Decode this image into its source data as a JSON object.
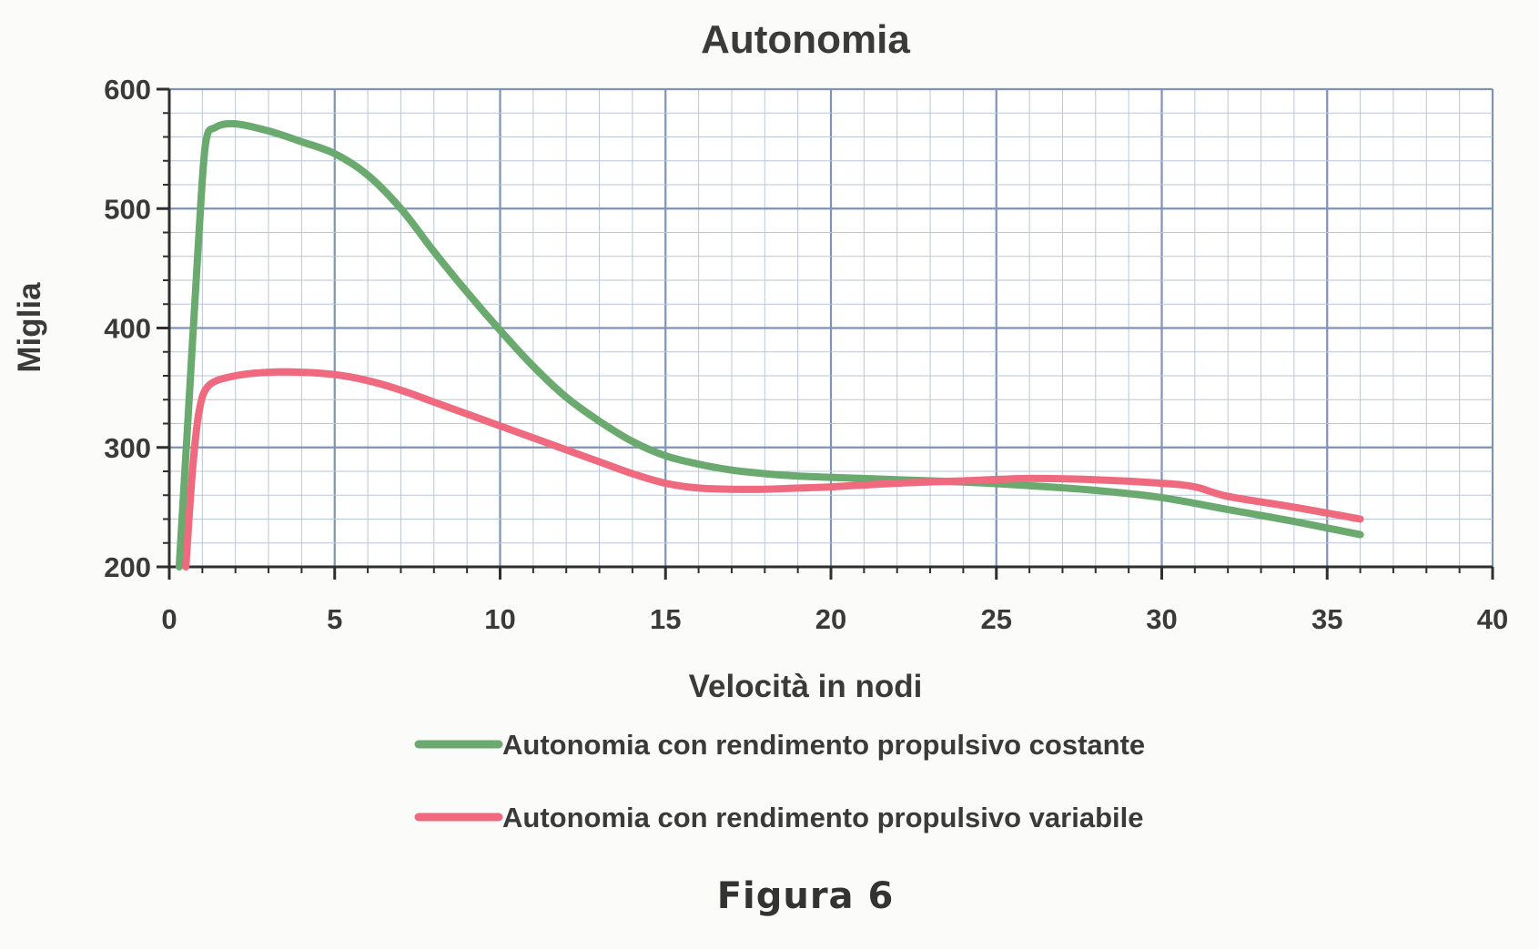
{
  "chart_data": {
    "type": "line",
    "title": "Autonomia",
    "xlabel": "Velocità in nodi",
    "ylabel": "Miglia",
    "xlim": [
      0,
      40
    ],
    "ylim": [
      200,
      600
    ],
    "x_ticks": [
      "0",
      "5",
      "10",
      "15",
      "20",
      "25",
      "30",
      "35",
      "40"
    ],
    "y_ticks": [
      "200",
      "300",
      "400",
      "500",
      "600"
    ],
    "grid": true,
    "legend_position": "bottom",
    "series": [
      {
        "name": "Autonomia con rendimento propulsivo costante",
        "color": "#6aaa6e",
        "points": [
          [
            0.3,
            200
          ],
          [
            0.6,
            340
          ],
          [
            0.9,
            480
          ],
          [
            1.1,
            555
          ],
          [
            1.4,
            568
          ],
          [
            2,
            571
          ],
          [
            3,
            565
          ],
          [
            4,
            556
          ],
          [
            5,
            546
          ],
          [
            6,
            528
          ],
          [
            7,
            500
          ],
          [
            8,
            464
          ],
          [
            9,
            430
          ],
          [
            10,
            398
          ],
          [
            11,
            368
          ],
          [
            12,
            342
          ],
          [
            13,
            322
          ],
          [
            14,
            305
          ],
          [
            15,
            293
          ],
          [
            16,
            286
          ],
          [
            17,
            281
          ],
          [
            18,
            278
          ],
          [
            19,
            276
          ],
          [
            20,
            275
          ],
          [
            22,
            273
          ],
          [
            24,
            271
          ],
          [
            26,
            268
          ],
          [
            28,
            264
          ],
          [
            30,
            258
          ],
          [
            32,
            248
          ],
          [
            34,
            238
          ],
          [
            36,
            227
          ]
        ]
      },
      {
        "name": "Autonomia con rendimento propulsivo variabile",
        "color": "#ef6a7e",
        "points": [
          [
            0.5,
            200
          ],
          [
            0.7,
            280
          ],
          [
            0.9,
            330
          ],
          [
            1.2,
            352
          ],
          [
            2,
            360
          ],
          [
            3,
            363
          ],
          [
            4,
            363
          ],
          [
            5,
            361
          ],
          [
            6,
            356
          ],
          [
            7,
            348
          ],
          [
            8,
            338
          ],
          [
            9,
            328
          ],
          [
            10,
            318
          ],
          [
            11,
            308
          ],
          [
            12,
            298
          ],
          [
            13,
            288
          ],
          [
            14,
            278
          ],
          [
            15,
            270
          ],
          [
            16,
            266
          ],
          [
            17,
            265
          ],
          [
            18,
            265
          ],
          [
            19,
            266
          ],
          [
            20,
            267
          ],
          [
            22,
            270
          ],
          [
            24,
            272
          ],
          [
            26,
            274
          ],
          [
            28,
            273
          ],
          [
            30,
            270
          ],
          [
            31,
            267
          ],
          [
            32,
            259
          ],
          [
            34,
            250
          ],
          [
            36,
            240
          ]
        ]
      }
    ]
  },
  "caption": "Figura  6"
}
